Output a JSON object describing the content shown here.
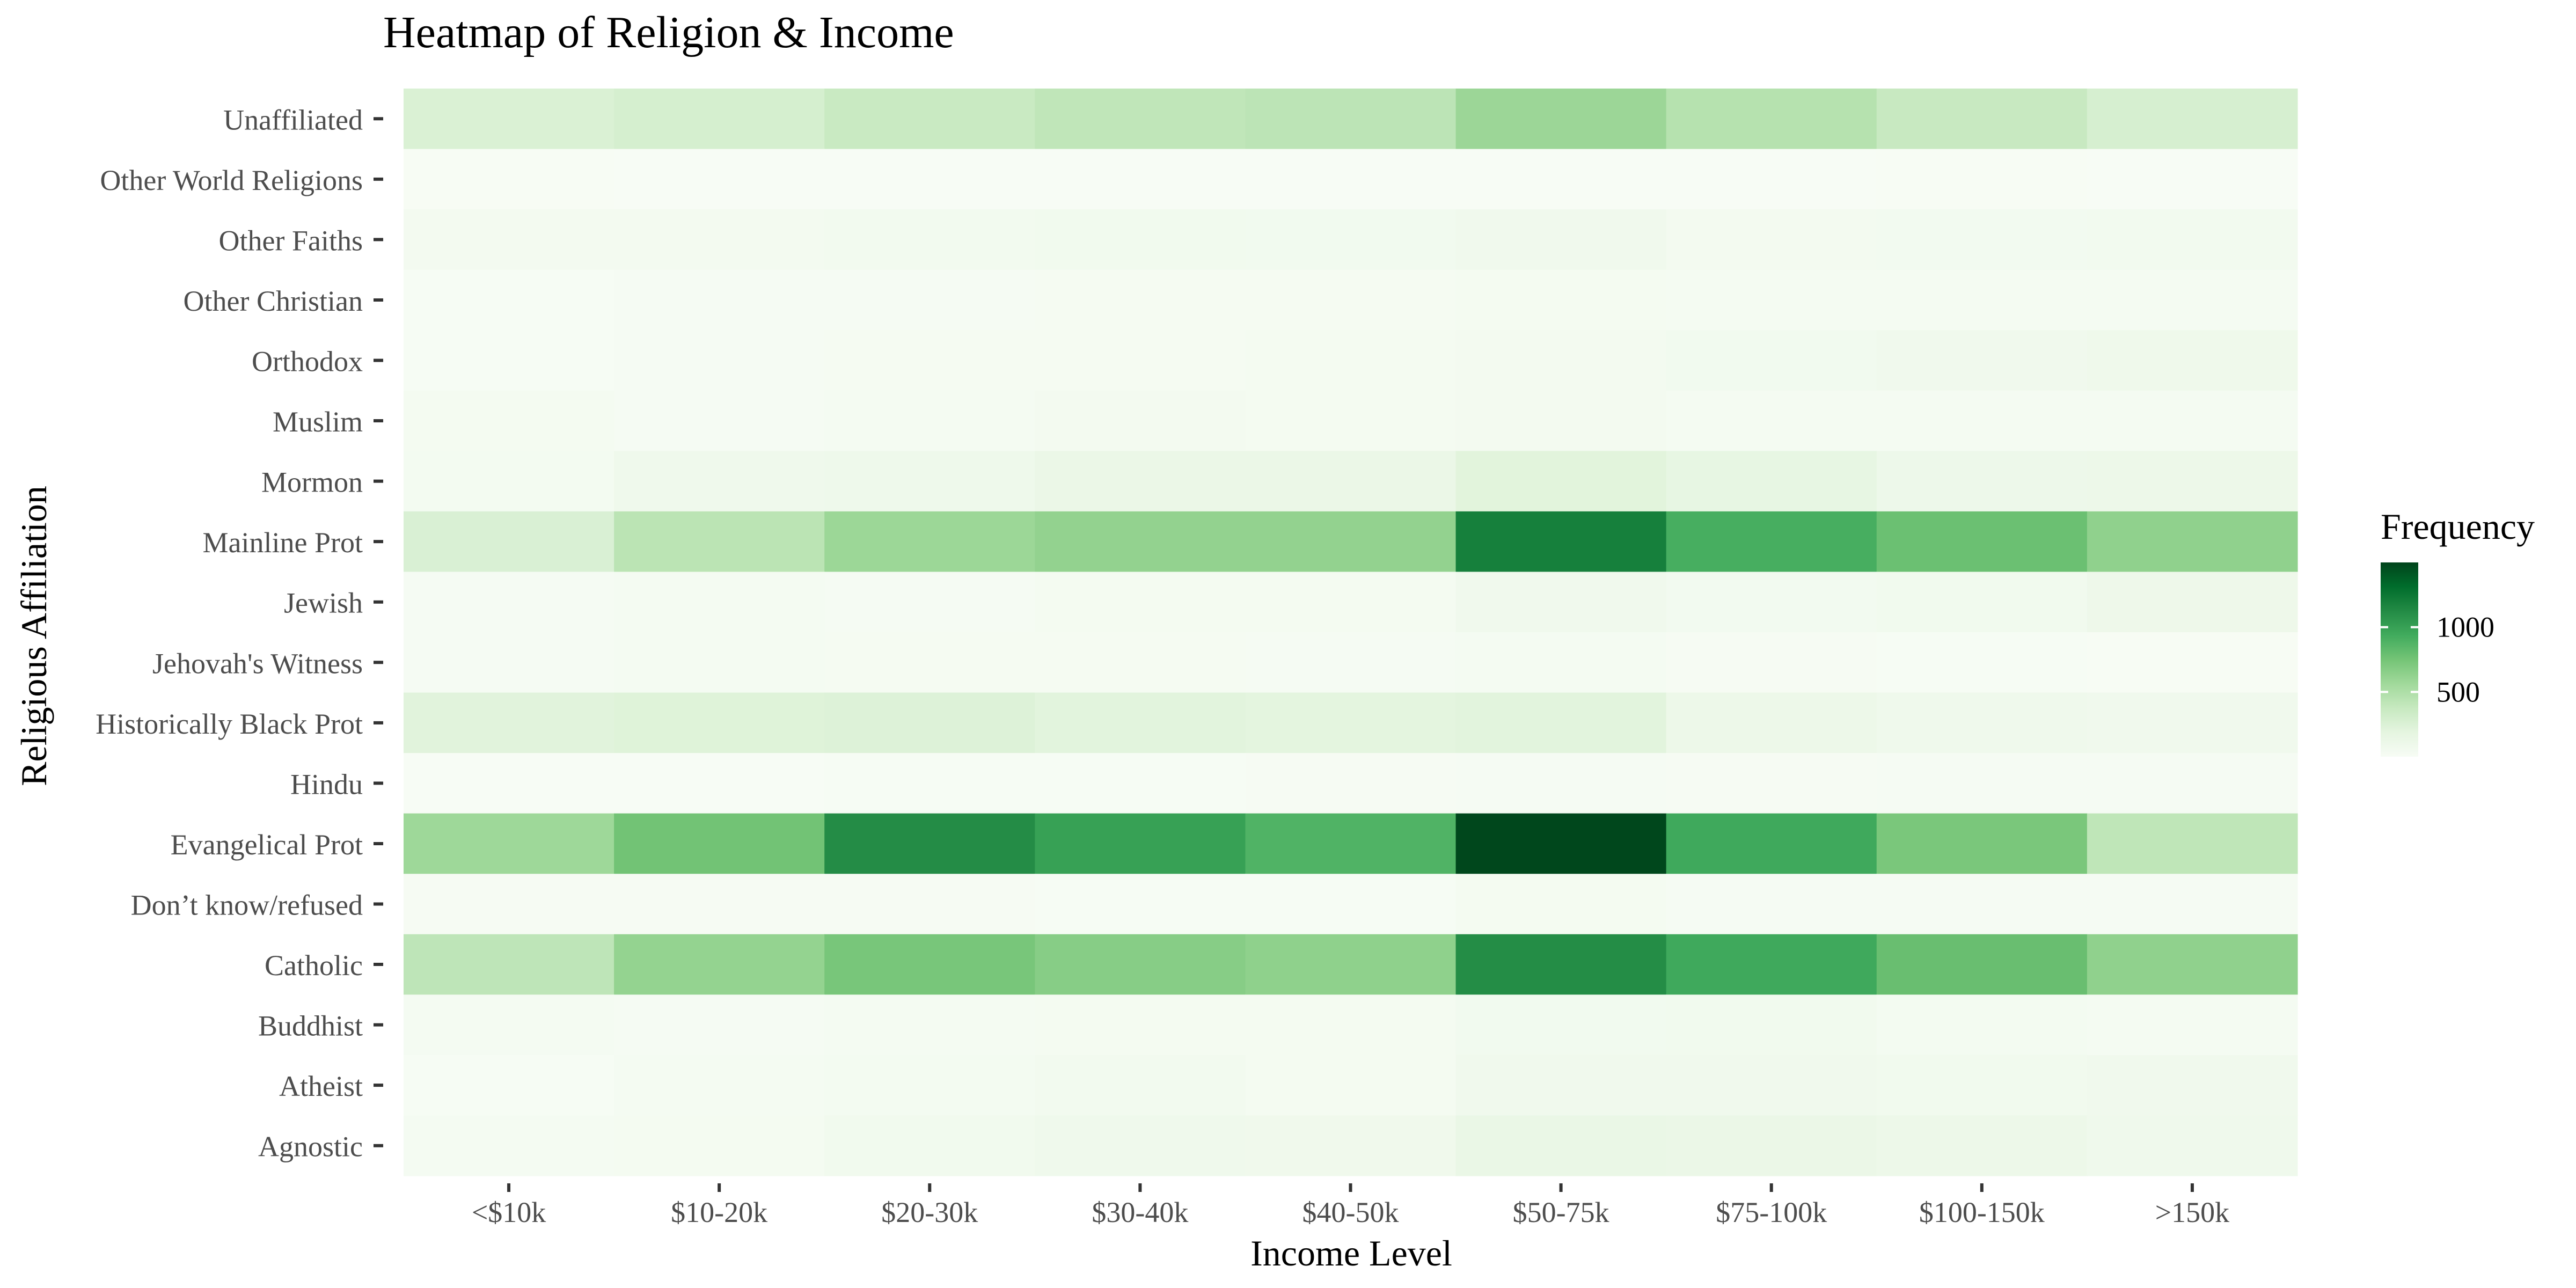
{
  "chart_data": {
    "type": "heatmap",
    "title": "Heatmap of Religion & Income",
    "xlabel": "Income Level",
    "ylabel": "Religious Affiliation",
    "x_categories": [
      "<$10k",
      "$10-20k",
      "$20-30k",
      "$30-40k",
      "$40-50k",
      "$50-75k",
      "$75-100k",
      "$100-150k",
      ">150k"
    ],
    "y_categories": [
      "Unaffiliated",
      "Other World Religions",
      "Other Faiths",
      "Other Christian",
      "Orthodox",
      "Muslim",
      "Mormon",
      "Mainline Prot",
      "Jewish",
      "Jehovah's Witness",
      "Historically Black Prot",
      "Hindu",
      "Evangelical Prot",
      "Don’t know/refused",
      "Catholic",
      "Buddhist",
      "Atheist",
      "Agnostic"
    ],
    "values": [
      [
        256,
        289,
        362,
        409,
        428,
        585,
        459,
        370,
        284
      ],
      [
        5,
        2,
        3,
        2,
        3,
        3,
        2,
        5,
        3
      ],
      [
        46,
        46,
        53,
        59,
        58,
        71,
        45,
        47,
        55
      ],
      [
        10,
        16,
        20,
        25,
        26,
        36,
        30,
        31,
        31
      ],
      [
        12,
        17,
        23,
        26,
        33,
        46,
        58,
        70,
        87
      ],
      [
        35,
        20,
        30,
        45,
        35,
        45,
        28,
        29,
        29
      ],
      [
        39,
        81,
        90,
        126,
        125,
        209,
        165,
        101,
        103
      ],
      [
        260,
        434,
        582,
        621,
        621,
        1193,
        917,
        782,
        635
      ],
      [
        19,
        29,
        22,
        35,
        35,
        75,
        47,
        63,
        97
      ],
      [
        20,
        27,
        24,
        24,
        21,
        30,
        14,
        10,
        5
      ],
      [
        213,
        226,
        235,
        204,
        191,
        208,
        103,
        84,
        71
      ],
      [
        1,
        3,
        9,
        10,
        15,
        21,
        14,
        18,
        18
      ],
      [
        575,
        757,
        1120,
        998,
        881,
        1486,
        949,
        723,
        414
      ],
      [
        15,
        14,
        15,
        11,
        10,
        35,
        21,
        17,
        16
      ],
      [
        418,
        617,
        732,
        670,
        638,
        1116,
        949,
        792,
        633
      ],
      [
        27,
        21,
        30,
        34,
        33,
        58,
        62,
        39,
        28
      ],
      [
        12,
        27,
        37,
        52,
        35,
        70,
        73,
        59,
        74
      ],
      [
        27,
        34,
        60,
        81,
        76,
        137,
        122,
        109,
        84
      ]
    ],
    "color_scale": {
      "low_color": "#f7fcf5",
      "high_color": "#00441b",
      "domain": [
        0,
        1500
      ],
      "stops": [
        "#f7fcf5",
        "#e5f5e0",
        "#c7e9c0",
        "#a1d99b",
        "#74c476",
        "#41ab5d",
        "#238b45",
        "#006d2c",
        "#00441b"
      ]
    },
    "legend": {
      "title": "Frequency",
      "ticks": [
        500,
        1000
      ],
      "position": "right"
    }
  }
}
